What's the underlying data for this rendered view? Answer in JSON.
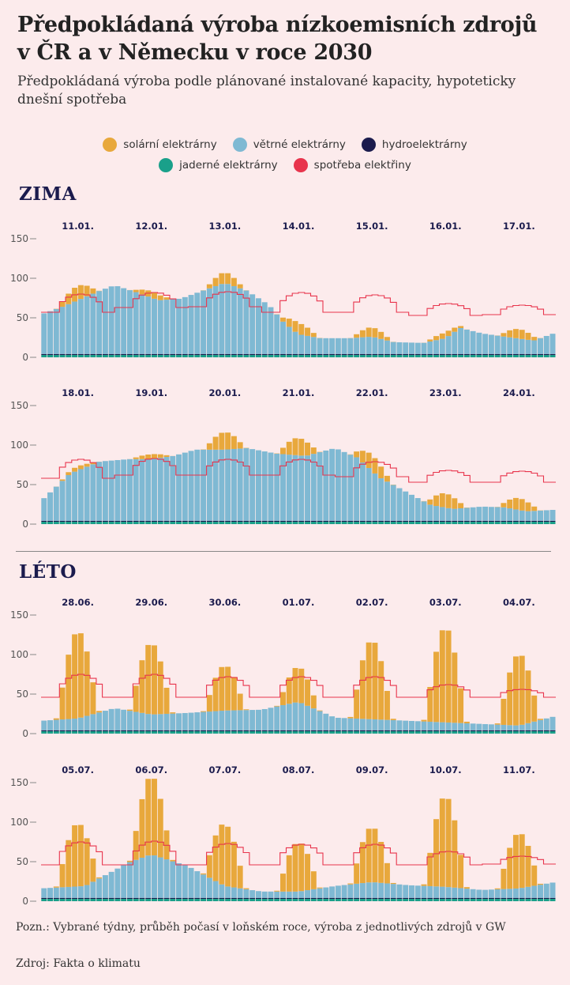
{
  "title": "Předpokládaná výroba nízkoemisních zdrojů v ČR a v Německu v roce 2030",
  "subtitle": "Předpokládaná výroba podle plánované instalované kapacity, hypoteticky dnešní spotřeba",
  "legend": [
    {
      "label": "solární elektrárny",
      "color": "#e8a83c"
    },
    {
      "label": "větrné elektrárny",
      "color": "#7fb9d3"
    },
    {
      "label": "hydroelektrárny",
      "color": "#1b1b4d"
    },
    {
      "label": "jaderné elektrárny",
      "color": "#1aa08a"
    },
    {
      "label": "spotřeba elektřiny",
      "color": "#e8344c"
    }
  ],
  "seasons": {
    "winter": "ZIMA",
    "summer": "LÉTO"
  },
  "note": "Pozn.: Vybrané týdny, průběh počasí v loňském roce, výroba z jednotlivých zdrojů v GW",
  "source": "Zdroj: Fakta o klimatu",
  "chart_data": [
    {
      "type": "bar",
      "stacked": true,
      "season": "ZIMA",
      "days": [
        "11.01.",
        "12.01.",
        "13.01.",
        "14.01.",
        "15.01.",
        "16.01.",
        "17.01."
      ],
      "ylim": [
        0,
        150
      ],
      "yticks": [
        "0",
        "50",
        "100",
        "150"
      ],
      "samples_per_day": 12,
      "series": [
        {
          "name": "jaderné elektrárny",
          "const": 3
        },
        {
          "name": "hydroelektrárny",
          "const": 1.2
        },
        {
          "name": "větrné elektrárny",
          "keypoints": [
            [
              0,
              50
            ],
            [
              0.3,
              60
            ],
            [
              0.8,
              80
            ],
            [
              1.0,
              87
            ],
            [
              1.3,
              78
            ],
            [
              1.6,
              68
            ],
            [
              1.9,
              70
            ],
            [
              2.2,
              80
            ],
            [
              2.5,
              90
            ],
            [
              2.8,
              80
            ],
            [
              3.1,
              62
            ],
            [
              3.3,
              40
            ],
            [
              3.5,
              25
            ],
            [
              3.8,
              20
            ],
            [
              4.2,
              20
            ],
            [
              4.5,
              22
            ],
            [
              4.8,
              15
            ],
            [
              5.2,
              14
            ],
            [
              5.5,
              20
            ],
            [
              5.7,
              33
            ],
            [
              6.0,
              26
            ],
            [
              6.3,
              22
            ],
            [
              6.7,
              17
            ],
            [
              7.0,
              27
            ]
          ]
        },
        {
          "name": "solární elektrárny",
          "peaks": [
            18,
            8,
            14,
            14,
            12,
            7,
            12
          ]
        },
        {
          "name": "spotřeba elektřiny",
          "day": [
            80,
            82,
            83,
            82,
            79,
            68,
            66
          ],
          "night": [
            57,
            63,
            64,
            57,
            57,
            53,
            54
          ]
        }
      ]
    },
    {
      "type": "bar",
      "stacked": true,
      "season": "ZIMA",
      "days": [
        "18.01.",
        "19.01.",
        "20.01.",
        "21.01.",
        "22.01.",
        "23.01.",
        "24.01."
      ],
      "ylim": [
        0,
        150
      ],
      "yticks": [
        "0",
        "50",
        "100",
        "150"
      ],
      "samples_per_day": 12,
      "series": [
        {
          "name": "jaderné elektrárny",
          "const": 3
        },
        {
          "name": "hydroelektrárny",
          "const": 1.2
        },
        {
          "name": "větrné elektrárny",
          "keypoints": [
            [
              0,
              25
            ],
            [
              0.4,
              60
            ],
            [
              0.8,
              75
            ],
            [
              1.2,
              78
            ],
            [
              1.5,
              78
            ],
            [
              1.8,
              82
            ],
            [
              2.1,
              90
            ],
            [
              2.5,
              90
            ],
            [
              2.8,
              92
            ],
            [
              3.2,
              85
            ],
            [
              3.6,
              82
            ],
            [
              4.0,
              92
            ],
            [
              4.3,
              80
            ],
            [
              4.6,
              55
            ],
            [
              5.0,
              35
            ],
            [
              5.3,
              20
            ],
            [
              5.6,
              15
            ],
            [
              6.0,
              18
            ],
            [
              6.3,
              17
            ],
            [
              6.6,
              12
            ],
            [
              7.0,
              14
            ]
          ]
        },
        {
          "name": "solární elektrárny",
          "peaks": [
            5,
            6,
            22,
            22,
            20,
            18,
            15
          ]
        },
        {
          "name": "spotřeba elektřiny",
          "day": [
            82,
            83,
            82,
            82,
            79,
            68,
            67
          ],
          "night": [
            58,
            62,
            62,
            62,
            60,
            53,
            53
          ]
        }
      ]
    },
    {
      "type": "bar",
      "stacked": true,
      "season": "LÉTO",
      "days": [
        "28.06.",
        "29.06.",
        "30.06.",
        "01.07.",
        "02.07.",
        "03.07.",
        "04.07."
      ],
      "ylim": [
        0,
        150
      ],
      "yticks": [
        "0",
        "50",
        "100",
        "150"
      ],
      "samples_per_day": 12,
      "series": [
        {
          "name": "jaderné elektrárny",
          "const": 3
        },
        {
          "name": "hydroelektrárny",
          "const": 1.2
        },
        {
          "name": "větrné elektrárny",
          "keypoints": [
            [
              0,
              12
            ],
            [
              0.5,
              15
            ],
            [
              1.0,
              28
            ],
            [
              1.5,
              20
            ],
            [
              2.0,
              22
            ],
            [
              2.5,
              25
            ],
            [
              3.0,
              26
            ],
            [
              3.5,
              36
            ],
            [
              4.0,
              16
            ],
            [
              4.5,
              14
            ],
            [
              5.0,
              12
            ],
            [
              5.5,
              10
            ],
            [
              6.0,
              8
            ],
            [
              6.5,
              6
            ],
            [
              7.0,
              18
            ]
          ]
        },
        {
          "name": "solární elektrárny",
          "peaks": [
            110,
            90,
            57,
            45,
            100,
            120,
            90
          ]
        },
        {
          "name": "spotřeba elektřiny",
          "day": [
            75,
            75,
            72,
            72,
            72,
            62,
            56
          ],
          "night": [
            46,
            46,
            46,
            46,
            46,
            46,
            46
          ]
        }
      ]
    },
    {
      "type": "bar",
      "stacked": true,
      "season": "LÉTO",
      "days": [
        "05.07.",
        "06.07.",
        "07.07.",
        "08.07.",
        "09.07.",
        "10.07.",
        "11.07."
      ],
      "ylim": [
        0,
        150
      ],
      "yticks": [
        "0",
        "50",
        "100",
        "150"
      ],
      "samples_per_day": 12,
      "series": [
        {
          "name": "jaderné elektrárny",
          "const": 3
        },
        {
          "name": "hydroelektrárny",
          "const": 1.2
        },
        {
          "name": "větrné elektrárny",
          "keypoints": [
            [
              0,
              12
            ],
            [
              0.6,
              15
            ],
            [
              1.2,
              45
            ],
            [
              1.5,
              55
            ],
            [
              2.0,
              40
            ],
            [
              2.5,
              15
            ],
            [
              3.0,
              8
            ],
            [
              3.5,
              8
            ],
            [
              4.0,
              15
            ],
            [
              4.5,
              20
            ],
            [
              5.0,
              16
            ],
            [
              5.5,
              14
            ],
            [
              6.0,
              10
            ],
            [
              6.5,
              12
            ],
            [
              7.0,
              20
            ]
          ]
        },
        {
          "name": "solární elektrárny",
          "peaks": [
            80,
            100,
            78,
            62,
            70,
            115,
            70
          ]
        },
        {
          "name": "spotřeba elektřiny",
          "day": [
            75,
            76,
            73,
            72,
            72,
            63,
            57
          ],
          "night": [
            46,
            46,
            46,
            46,
            46,
            46,
            47
          ]
        }
      ]
    }
  ]
}
